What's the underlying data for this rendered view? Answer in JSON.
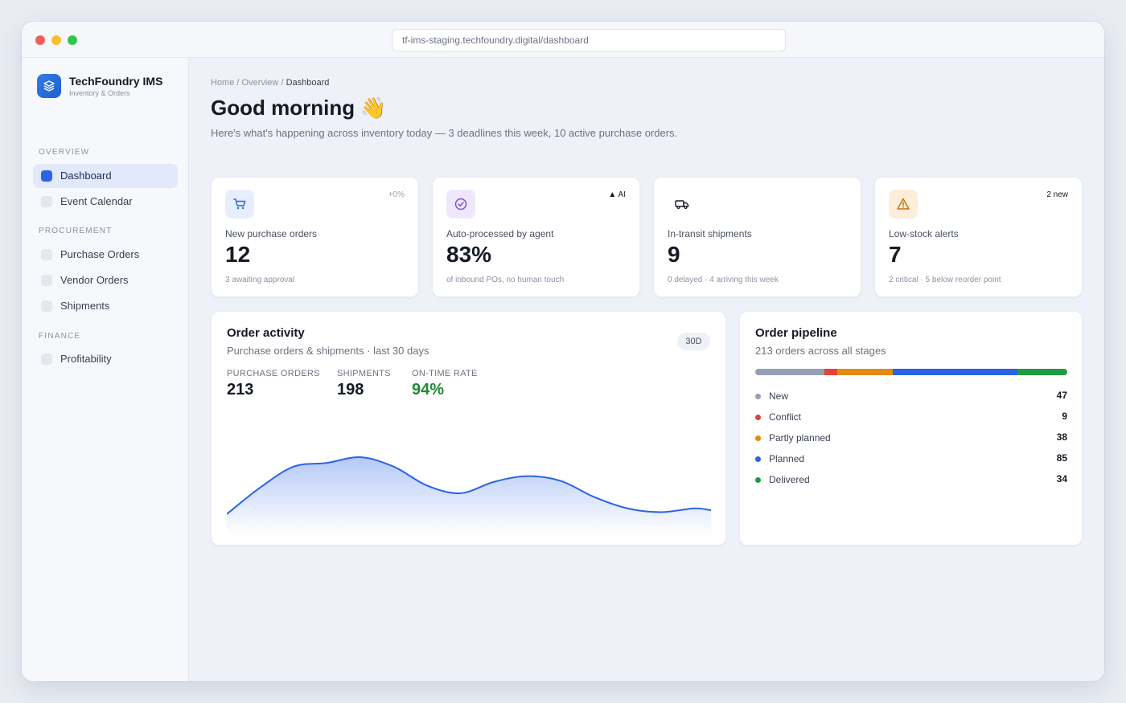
{
  "browser": {
    "url": "tf-ims-staging.techfoundry.digital/dashboard"
  },
  "brand": {
    "name": "TechFoundry IMS",
    "tagline": "Inventory & Orders"
  },
  "sidebar": {
    "sections": [
      {
        "title": "OVERVIEW",
        "items": [
          {
            "label": "Dashboard",
            "active": true
          },
          {
            "label": "Event Calendar"
          }
        ]
      },
      {
        "title": "PROCUREMENT",
        "items": [
          {
            "label": "Purchase Orders"
          },
          {
            "label": "Vendor Orders"
          },
          {
            "label": "Shipments"
          }
        ]
      },
      {
        "title": "FINANCE",
        "items": [
          {
            "label": "Profitability"
          }
        ]
      }
    ]
  },
  "breadcrumb": {
    "home": "Home",
    "sep": "/",
    "overview": "Overview",
    "current": "Dashboard"
  },
  "header": {
    "title": "Good morning 👋",
    "subtitle": "Here's what's happening across inventory today — 3 deadlines this week, 10 active purchase orders."
  },
  "stats": [
    {
      "label": "New purchase orders",
      "value": "12",
      "note": "3 awaiting approval",
      "badge": "+0%",
      "icon": "cart-icon",
      "icon_bg": "#e7efff",
      "icon_color": "#2b63e6",
      "badge_color": "#9aa3b2"
    },
    {
      "label": "Auto-processed by agent",
      "value": "83%",
      "note": "of inbound POs, no human touch",
      "badge": "▲ AI",
      "icon": "check-circle-icon",
      "icon_bg": "#efe8fd",
      "icon_color": "#7c4ddb",
      "badge_color": "#151a24"
    },
    {
      "label": "In-transit shipments",
      "value": "9",
      "note": "0 delayed · 4 arriving this week",
      "badge": "",
      "icon": "truck-icon",
      "icon_bg": "#ffffff",
      "icon_color": "#151a24",
      "badge_color": "#151a24"
    },
    {
      "label": "Low-stock alerts",
      "value": "7",
      "note": "2 critical · 5 below reorder point",
      "badge": "2 new",
      "icon": "warning-icon",
      "icon_bg": "#fdeedc",
      "icon_color": "#c7720a",
      "badge_color": "#151a24"
    }
  ],
  "activity": {
    "title": "Order activity",
    "subtitle": "Purchase orders & shipments · last 30 days",
    "range": "30D",
    "kpis": [
      {
        "label": "PURCHASE ORDERS",
        "value": "213"
      },
      {
        "label": "SHIPMENTS",
        "value": "198"
      },
      {
        "label": "ON-TIME RATE",
        "value": "94%"
      }
    ],
    "chart_data": {
      "type": "area",
      "title": "",
      "xlabel": "",
      "ylabel": "",
      "x": [
        1,
        3,
        5,
        7,
        9,
        11,
        13,
        15,
        17,
        19,
        21,
        23,
        25,
        27,
        29,
        30
      ],
      "series": [
        {
          "values": [
            12,
            40,
            62,
            66,
            72,
            62,
            42,
            34,
            46,
            52,
            47,
            30,
            18,
            14,
            18,
            16
          ]
        }
      ],
      "ylim": [
        0,
        100
      ],
      "grid": false,
      "color": "#2b63e6"
    }
  },
  "pipeline": {
    "title": "Order pipeline",
    "subtitle": "213 orders across all stages",
    "stages": [
      {
        "name": "New",
        "count": "47",
        "value": 47,
        "color": "#97a0b3"
      },
      {
        "name": "Conflict",
        "count": "9",
        "value": 9,
        "color": "#e04337"
      },
      {
        "name": "Partly planned",
        "count": "38",
        "value": 38,
        "color": "#e38a12"
      },
      {
        "name": "Planned",
        "count": "85",
        "value": 85,
        "color": "#2b63e6"
      },
      {
        "name": "Delivered",
        "count": "34",
        "value": 34,
        "color": "#1f9b43"
      }
    ]
  }
}
